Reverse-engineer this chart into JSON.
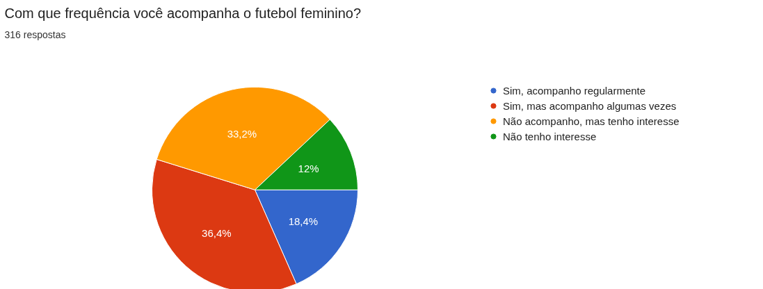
{
  "chart_data": {
    "type": "pie",
    "title": "Com que frequência você acompanha o futebol feminino?",
    "subtitle": "316 respostas",
    "categories": [
      "Sim, acompanho regularmente",
      "Sim, mas acompanho algumas vezes",
      "Não acompanho, mas tenho interesse",
      "Não tenho interesse"
    ],
    "values": [
      18.4,
      36.4,
      33.2,
      12
    ],
    "value_labels": [
      "18,4%",
      "36,4%",
      "33,2%",
      "12%"
    ],
    "colors": [
      "#3366cc",
      "#dc3912",
      "#ff9900",
      "#109618"
    ],
    "legend": "right"
  }
}
